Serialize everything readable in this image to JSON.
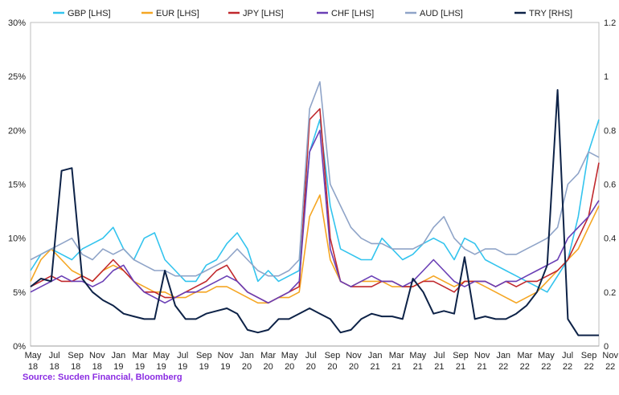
{
  "source": "Source: Sucden Financial, Bloomberg",
  "chart_data": {
    "type": "line",
    "title": "",
    "xlabel": "",
    "ylabel_left": "",
    "ylabel_right": "",
    "y_left_range": [
      0,
      30
    ],
    "y_left_ticks": [
      "0%",
      "5%",
      "10%",
      "15%",
      "20%",
      "25%",
      "30%"
    ],
    "y_right_range": [
      0,
      1.2
    ],
    "y_right_ticks": [
      "0",
      "0.2",
      "0.4",
      "0.6",
      "0.8",
      "1",
      "1.2"
    ],
    "x_range": [
      0,
      55
    ],
    "x_tick_top": [
      "May",
      "Jul",
      "Sep",
      "Nov",
      "Jan",
      "Mar",
      "May",
      "Jul",
      "Sep",
      "Nov",
      "Jan",
      "Mar",
      "May",
      "Jul",
      "Sep",
      "Nov",
      "Jan",
      "Mar",
      "May",
      "Jul",
      "Sep",
      "Nov",
      "Jan",
      "Mar",
      "May",
      "Jul",
      "Sep",
      "Nov"
    ],
    "x_tick_bottom": [
      "18",
      "18",
      "18",
      "18",
      "19",
      "19",
      "19",
      "19",
      "19",
      "19",
      "20",
      "20",
      "20",
      "20",
      "20",
      "20",
      "21",
      "21",
      "21",
      "21",
      "21",
      "21",
      "22",
      "22",
      "22",
      "22",
      "22",
      "22"
    ],
    "legend_position": "top",
    "series": [
      {
        "name": "GBP [LHS]",
        "axis": "left",
        "color": "#33c4ee",
        "x": [
          0,
          1,
          2,
          3,
          4,
          5,
          6,
          7,
          8,
          9,
          10,
          11,
          12,
          13,
          14,
          15,
          16,
          17,
          18,
          19,
          20,
          21,
          22,
          23,
          24,
          25,
          26,
          27,
          28,
          29,
          30,
          31,
          32,
          33,
          34,
          35,
          36,
          37,
          38,
          39,
          40,
          41,
          42,
          43,
          44,
          45,
          46,
          47,
          48,
          49,
          50,
          51,
          52,
          53,
          54,
          55
        ],
        "values": [
          7,
          8.5,
          9,
          8.5,
          8,
          9,
          9.5,
          10,
          11,
          9,
          8,
          10,
          10.5,
          8,
          7,
          6,
          6,
          7.5,
          8,
          9.5,
          10.5,
          9,
          6,
          7,
          6,
          6.5,
          7,
          18,
          21,
          13,
          9,
          8.5,
          8,
          8,
          10,
          9,
          8,
          8.5,
          9.5,
          10,
          9.5,
          8,
          10,
          9.5,
          8,
          7.5,
          7,
          6.5,
          6,
          5.5,
          5,
          6.5,
          8,
          12,
          18,
          21
        ]
      },
      {
        "name": "EUR [LHS]",
        "axis": "left",
        "color": "#f5a623",
        "x": [
          0,
          1,
          2,
          3,
          4,
          5,
          6,
          7,
          8,
          9,
          10,
          11,
          12,
          13,
          14,
          15,
          16,
          17,
          18,
          19,
          20,
          21,
          22,
          23,
          24,
          25,
          26,
          27,
          28,
          29,
          30,
          31,
          32,
          33,
          34,
          35,
          36,
          37,
          38,
          39,
          40,
          41,
          42,
          43,
          44,
          45,
          46,
          47,
          48,
          49,
          50,
          51,
          52,
          53,
          54,
          55
        ],
        "values": [
          6,
          8,
          9,
          8,
          7,
          6.5,
          6,
          7,
          7.5,
          7,
          6,
          5.5,
          5,
          5,
          4.5,
          4.5,
          5,
          5,
          5.5,
          5.5,
          5,
          4.5,
          4,
          4,
          4.5,
          4.5,
          5,
          12,
          14,
          8,
          6,
          5.5,
          6,
          6,
          6,
          5.5,
          5.5,
          5.5,
          6,
          6.5,
          6,
          5.5,
          6,
          6,
          5.5,
          5,
          4.5,
          4,
          4.5,
          5,
          6,
          7,
          8,
          9,
          11,
          13
        ]
      },
      {
        "name": "JPY [LHS]",
        "axis": "left",
        "color": "#c0282d",
        "x": [
          0,
          1,
          2,
          3,
          4,
          5,
          6,
          7,
          8,
          9,
          10,
          11,
          12,
          13,
          14,
          15,
          16,
          17,
          18,
          19,
          20,
          21,
          22,
          23,
          24,
          25,
          26,
          27,
          28,
          29,
          30,
          31,
          32,
          33,
          34,
          35,
          36,
          37,
          38,
          39,
          40,
          41,
          42,
          43,
          44,
          45,
          46,
          47,
          48,
          49,
          50,
          51,
          52,
          53,
          54,
          55
        ],
        "values": [
          5.5,
          6,
          6.5,
          6,
          6,
          6.5,
          6,
          7,
          8,
          7,
          6,
          5,
          5,
          4.5,
          4.5,
          5,
          5.5,
          6,
          7,
          7.5,
          6,
          5,
          4.5,
          4,
          4.5,
          5,
          5.5,
          21,
          22,
          10,
          6,
          5.5,
          5.5,
          5.5,
          6,
          6,
          5.5,
          5.5,
          6,
          6,
          5.5,
          5,
          6,
          6,
          6,
          5.5,
          6,
          5.5,
          6,
          6,
          6.5,
          7,
          8,
          10,
          12,
          17
        ]
      },
      {
        "name": "CHF [LHS]",
        "axis": "left",
        "color": "#6a3fb5",
        "x": [
          0,
          1,
          2,
          3,
          4,
          5,
          6,
          7,
          8,
          9,
          10,
          11,
          12,
          13,
          14,
          15,
          16,
          17,
          18,
          19,
          20,
          21,
          22,
          23,
          24,
          25,
          26,
          27,
          28,
          29,
          30,
          31,
          32,
          33,
          34,
          35,
          36,
          37,
          38,
          39,
          40,
          41,
          42,
          43,
          44,
          45,
          46,
          47,
          48,
          49,
          50,
          51,
          52,
          53,
          54,
          55
        ],
        "values": [
          5,
          5.5,
          6,
          6.5,
          6,
          6,
          5.5,
          6,
          7,
          7.5,
          6,
          5,
          4.5,
          4,
          4.5,
          5,
          5,
          5.5,
          6,
          6.5,
          6,
          5,
          4.5,
          4,
          4.5,
          5,
          6,
          18,
          20,
          9,
          6,
          5.5,
          6,
          6.5,
          6,
          6,
          5.5,
          6,
          7,
          8,
          7,
          6,
          5.5,
          6,
          6,
          5.5,
          6,
          6,
          6.5,
          7,
          7.5,
          8,
          10,
          11,
          12,
          13.5
        ]
      },
      {
        "name": "AUD [LHS]",
        "axis": "left",
        "color": "#8fa4c8",
        "x": [
          0,
          1,
          2,
          3,
          4,
          5,
          6,
          7,
          8,
          9,
          10,
          11,
          12,
          13,
          14,
          15,
          16,
          17,
          18,
          19,
          20,
          21,
          22,
          23,
          24,
          25,
          26,
          27,
          28,
          29,
          30,
          31,
          32,
          33,
          34,
          35,
          36,
          37,
          38,
          39,
          40,
          41,
          42,
          43,
          44,
          45,
          46,
          47,
          48,
          49,
          50,
          51,
          52,
          53,
          54,
          55
        ],
        "values": [
          8,
          8.5,
          9,
          9.5,
          10,
          8.5,
          8,
          9,
          8.5,
          9,
          8,
          7.5,
          7,
          7,
          6.5,
          6.5,
          6.5,
          7,
          7.5,
          8,
          9,
          8,
          7,
          6.5,
          6.5,
          7,
          8,
          22,
          24.5,
          15,
          13,
          11,
          10,
          9.5,
          9.5,
          9,
          9,
          9,
          9.5,
          11,
          12,
          10,
          9,
          8.5,
          9,
          9,
          8.5,
          8.5,
          9,
          9.5,
          10,
          11,
          15,
          16,
          18,
          17.5
        ]
      },
      {
        "name": "TRY [RHS]",
        "axis": "right",
        "color": "#0d2247",
        "x": [
          0,
          1,
          2,
          3,
          4,
          5,
          6,
          7,
          8,
          9,
          10,
          11,
          12,
          13,
          14,
          15,
          16,
          17,
          18,
          19,
          20,
          21,
          22,
          23,
          24,
          25,
          26,
          27,
          28,
          29,
          30,
          31,
          32,
          33,
          34,
          35,
          36,
          37,
          38,
          39,
          40,
          41,
          42,
          43,
          44,
          45,
          46,
          47,
          48,
          49,
          50,
          51,
          52,
          53,
          54,
          55
        ],
        "values": [
          0.22,
          0.25,
          0.24,
          0.65,
          0.66,
          0.25,
          0.2,
          0.17,
          0.15,
          0.12,
          0.11,
          0.1,
          0.1,
          0.28,
          0.15,
          0.1,
          0.1,
          0.12,
          0.13,
          0.14,
          0.12,
          0.06,
          0.05,
          0.06,
          0.1,
          0.1,
          0.12,
          0.14,
          0.12,
          0.1,
          0.05,
          0.06,
          0.1,
          0.12,
          0.11,
          0.11,
          0.1,
          0.25,
          0.2,
          0.12,
          0.13,
          0.12,
          0.33,
          0.1,
          0.11,
          0.1,
          0.1,
          0.12,
          0.15,
          0.2,
          0.3,
          0.95,
          0.1,
          0.04,
          0.04,
          0.04
        ]
      }
    ]
  }
}
